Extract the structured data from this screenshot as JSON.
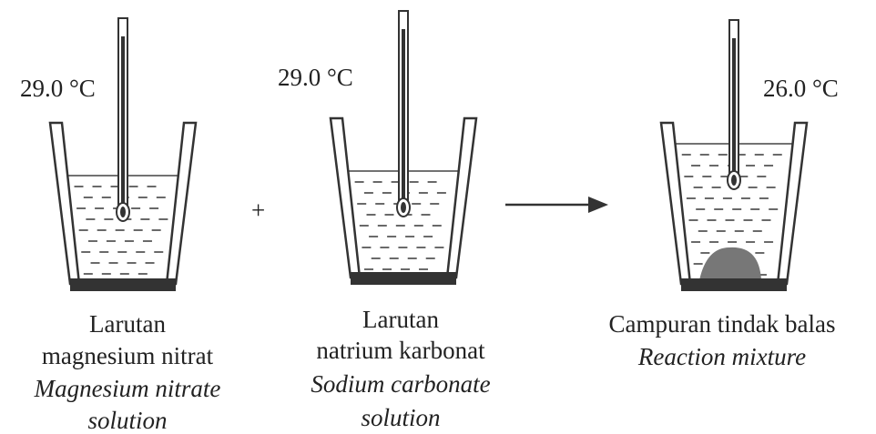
{
  "beakers": [
    {
      "temperature": "29.0 °C",
      "label": [
        "Larutan",
        "magnesium nitrat"
      ],
      "label_en": [
        "Magnesium nitrate",
        "solution"
      ]
    },
    {
      "temperature": "29.0 °C",
      "label": [
        "Larutan",
        "natrium karbonat"
      ],
      "label_en": [
        "Sodium carbonate",
        "solution"
      ]
    },
    {
      "temperature": "26.0 °C",
      "label": [
        "Campuran tindak balas"
      ],
      "label_en": [
        "Reaction mixture"
      ]
    }
  ],
  "plus": "+"
}
